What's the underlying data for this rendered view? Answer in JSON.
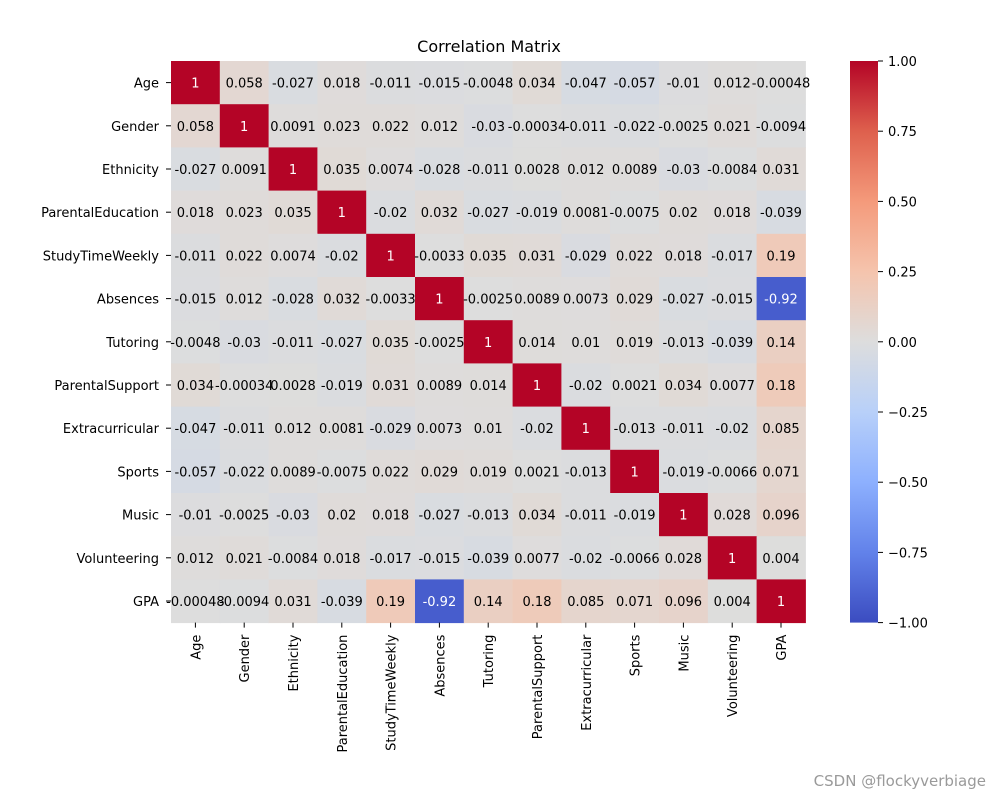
{
  "chart_data": {
    "type": "heatmap",
    "title": "Correlation Matrix",
    "colormap": "coolwarm",
    "vmin": -1,
    "vmax": 1,
    "labels": [
      "Age",
      "Gender",
      "Ethnicity",
      "ParentalEducation",
      "StudyTimeWeekly",
      "Absences",
      "Tutoring",
      "ParentalSupport",
      "Extracurricular",
      "Sports",
      "Music",
      "Volunteering",
      "GPA"
    ],
    "values": [
      [
        1,
        0.058,
        -0.027,
        0.018,
        -0.011,
        -0.015,
        -0.0048,
        0.034,
        -0.047,
        -0.057,
        -0.01,
        0.012,
        -0.00048
      ],
      [
        0.058,
        1,
        0.0091,
        0.023,
        0.022,
        0.012,
        -0.03,
        -0.00034,
        -0.011,
        -0.022,
        -0.0025,
        0.021,
        -0.0094
      ],
      [
        -0.027,
        0.0091,
        1,
        0.035,
        0.0074,
        -0.028,
        -0.011,
        0.0028,
        0.012,
        0.0089,
        -0.03,
        -0.0084,
        0.031
      ],
      [
        0.018,
        0.023,
        0.035,
        1,
        -0.02,
        0.032,
        -0.027,
        -0.019,
        0.0081,
        -0.0075,
        0.02,
        0.018,
        -0.039
      ],
      [
        -0.011,
        0.022,
        0.0074,
        -0.02,
        1,
        -0.0033,
        0.035,
        0.031,
        -0.029,
        0.022,
        0.018,
        -0.017,
        0.19
      ],
      [
        -0.015,
        0.012,
        -0.028,
        0.032,
        -0.0033,
        1,
        -0.0025,
        0.0089,
        0.0073,
        0.029,
        -0.027,
        -0.015,
        -0.92
      ],
      [
        -0.0048,
        -0.03,
        -0.011,
        -0.027,
        0.035,
        -0.0025,
        1,
        0.014,
        0.01,
        0.019,
        -0.013,
        -0.039,
        0.14
      ],
      [
        0.034,
        -0.00034,
        0.0028,
        -0.019,
        0.031,
        0.0089,
        0.014,
        1,
        -0.02,
        0.0021,
        0.034,
        0.0077,
        0.18
      ],
      [
        -0.047,
        -0.011,
        0.012,
        0.0081,
        -0.029,
        0.0073,
        0.01,
        -0.02,
        1,
        -0.013,
        -0.011,
        -0.02,
        0.085
      ],
      [
        -0.057,
        -0.022,
        0.0089,
        -0.0075,
        0.022,
        0.029,
        0.019,
        0.0021,
        -0.013,
        1,
        -0.019,
        -0.0066,
        0.071
      ],
      [
        -0.01,
        -0.0025,
        -0.03,
        0.02,
        0.018,
        -0.027,
        -0.013,
        0.034,
        -0.011,
        -0.019,
        1,
        0.028,
        0.096
      ],
      [
        0.012,
        0.021,
        -0.0084,
        0.018,
        -0.017,
        -0.015,
        -0.039,
        0.0077,
        -0.02,
        -0.0066,
        0.028,
        1,
        0.004
      ],
      [
        -0.00048,
        -0.0094,
        0.031,
        -0.039,
        0.19,
        -0.92,
        0.14,
        0.18,
        0.085,
        0.071,
        0.096,
        0.004,
        1
      ]
    ],
    "colorbar_ticks": [
      1.0,
      0.75,
      0.5,
      0.25,
      0.0,
      -0.25,
      -0.5,
      -0.75,
      -1.0
    ],
    "colorbar_tick_labels": [
      "1.00",
      "0.75",
      "0.50",
      "0.25",
      "0.00",
      "−0.25",
      "−0.50",
      "−0.75",
      "−1.00"
    ]
  },
  "watermark": "CSDN @flockyverbiage"
}
